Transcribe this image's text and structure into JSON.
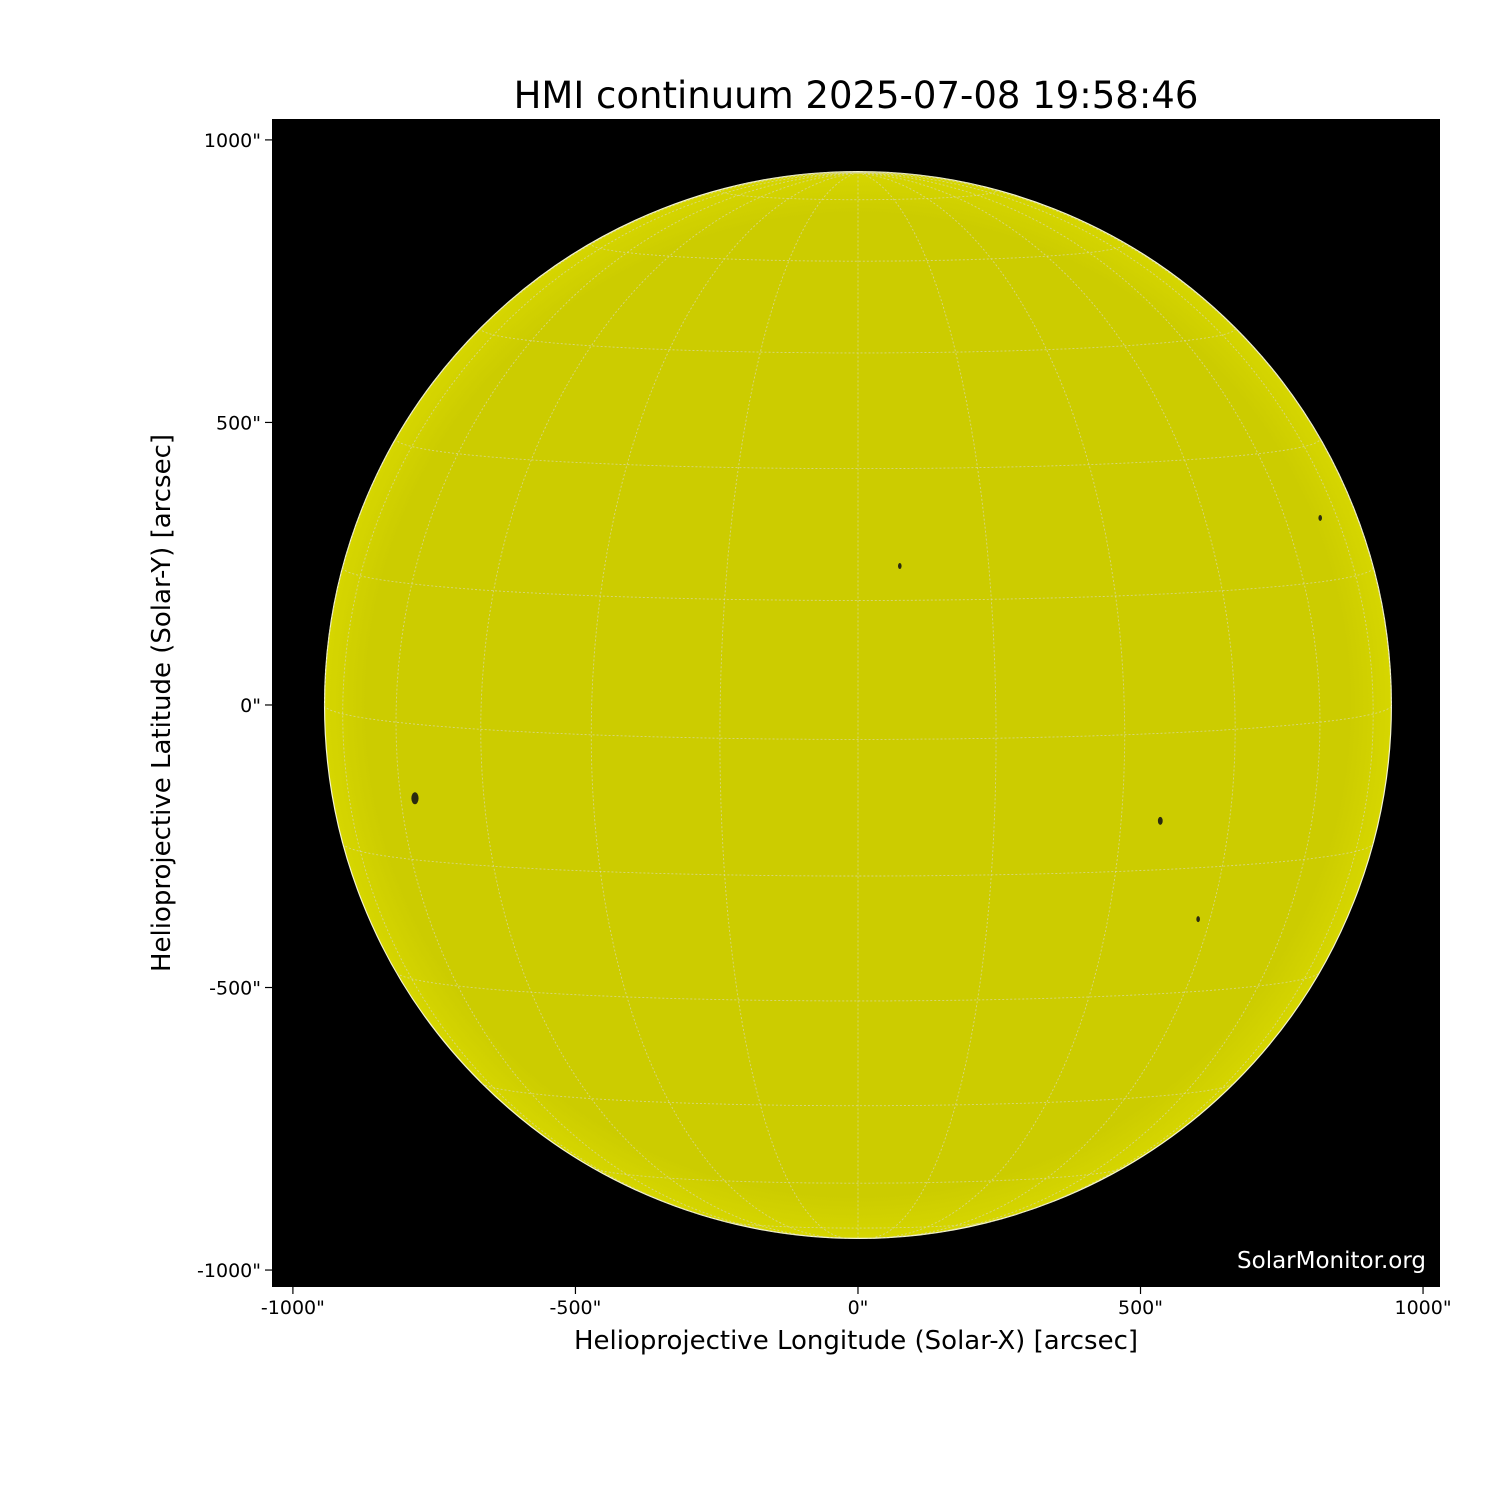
{
  "chart_data": {
    "type": "image",
    "title": "HMI continuum 2025-07-08 19:58:46",
    "xlabel": "Helioprojective Longitude (Solar-X) [arcsec]",
    "ylabel": "Helioprojective Latitude (Solar-Y) [arcsec]",
    "xlim": [
      -1037,
      1030
    ],
    "ylim": [
      -1030,
      1037
    ],
    "xticks": [
      -1000,
      -500,
      0,
      500,
      1000
    ],
    "xtick_labels": [
      "-1000\"",
      "-500\"",
      "0\"",
      "500\"",
      "1000\""
    ],
    "yticks": [
      1000,
      500,
      0,
      -500,
      -1000
    ],
    "ytick_labels": [
      "1000\"",
      "500\"",
      "0\"",
      "-500\"",
      "-1000\""
    ],
    "solar_radius_arcsec": 944,
    "grid": true,
    "grid_spacing_deg": 15,
    "b0_deg": 3.7,
    "colors": {
      "disk": "#cccc00",
      "background": "#000000",
      "grid": "#d8d8a0",
      "sunspot": "#2a2a10"
    },
    "sunspots": [
      {
        "x": -784,
        "y": -165,
        "size": 6
      },
      {
        "x": 74,
        "y": 246,
        "size": 3
      },
      {
        "x": 535,
        "y": -205,
        "size": 4
      },
      {
        "x": 602,
        "y": -379,
        "size": 3
      },
      {
        "x": 818,
        "y": 331,
        "size": 3
      }
    ],
    "watermark": "SolarMonitor.org"
  }
}
